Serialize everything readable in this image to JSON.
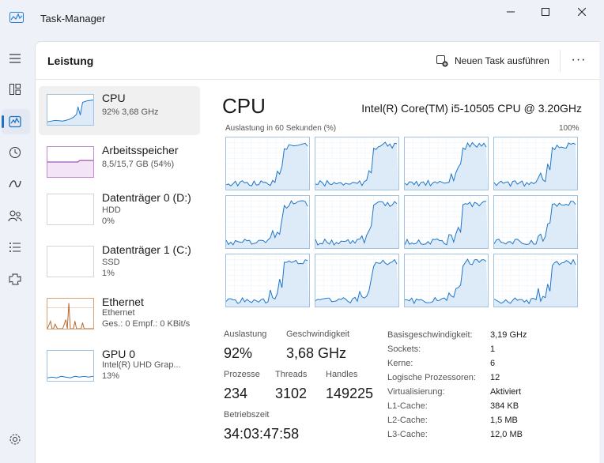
{
  "window": {
    "title": "Task-Manager"
  },
  "nav": {
    "items": [
      {
        "icon": "hamburger-icon"
      },
      {
        "icon": "processes-icon"
      },
      {
        "icon": "performance-icon",
        "active": true
      },
      {
        "icon": "history-icon"
      },
      {
        "icon": "startup-icon"
      },
      {
        "icon": "users-icon"
      },
      {
        "icon": "details-icon"
      },
      {
        "icon": "services-icon"
      },
      {
        "icon": "settings-icon"
      }
    ]
  },
  "header": {
    "title": "Leistung",
    "new_task_label": "Neuen Task ausführen",
    "more_label": "···"
  },
  "resources": [
    {
      "name": "CPU",
      "sub1": "92%  3,68 GHz",
      "sub2": "",
      "sub3": "",
      "active": true,
      "kind": "cpu"
    },
    {
      "name": "Arbeitsspeicher",
      "sub1": "8,5/15,7 GB (54%)",
      "sub2": "",
      "sub3": "",
      "kind": "mem"
    },
    {
      "name": "Datenträger 0 (D:)",
      "sub1": "HDD",
      "sub2": "0%",
      "sub3": "",
      "kind": "disk"
    },
    {
      "name": "Datenträger 1 (C:)",
      "sub1": "SSD",
      "sub2": "1%",
      "sub3": "",
      "kind": "disk"
    },
    {
      "name": "Ethernet",
      "sub1": "Ethernet",
      "sub2": "Ges.: 0 Empf.: 0 KBit/s",
      "sub3": "",
      "kind": "eth"
    },
    {
      "name": "GPU 0",
      "sub1": "Intel(R) UHD Grap...",
      "sub2": "13%",
      "sub3": "",
      "kind": "gpu"
    }
  ],
  "detail": {
    "title": "CPU",
    "model": "Intel(R) Core(TM) i5-10505 CPU @ 3.20GHz",
    "graph_caption": "Auslastung in 60 Sekunden (%)",
    "graph_max": "100%",
    "core_count": 12,
    "stats": {
      "utilization_label": "Auslastung",
      "utilization": "92%",
      "speed_label": "Geschwindigkeit",
      "speed": "3,68 GHz",
      "processes_label": "Prozesse",
      "processes": "234",
      "threads_label": "Threads",
      "threads": "3102",
      "handles_label": "Handles",
      "handles": "149225",
      "uptime_label": "Betriebszeit",
      "uptime": "34:03:47:58"
    },
    "specs": [
      {
        "key": "Basisgeschwindigkeit:",
        "value": "3,19 GHz"
      },
      {
        "key": "Sockets:",
        "value": "1"
      },
      {
        "key": "Kerne:",
        "value": "6"
      },
      {
        "key": "Logische Prozessoren:",
        "value": "12"
      },
      {
        "key": "Virtualisierung:",
        "value": "Aktiviert"
      },
      {
        "key": "L1-Cache:",
        "value": "384 KB"
      },
      {
        "key": "L2-Cache:",
        "value": "1,5 MB"
      },
      {
        "key": "L3-Cache:",
        "value": "12,0 MB"
      }
    ]
  },
  "colors": {
    "cpu_line": "#1a73c8",
    "cpu_fill": "#dcebf7",
    "mem_line": "#8b2fa0",
    "eth_line": "#b8652a",
    "accent": "#1a73c8"
  }
}
